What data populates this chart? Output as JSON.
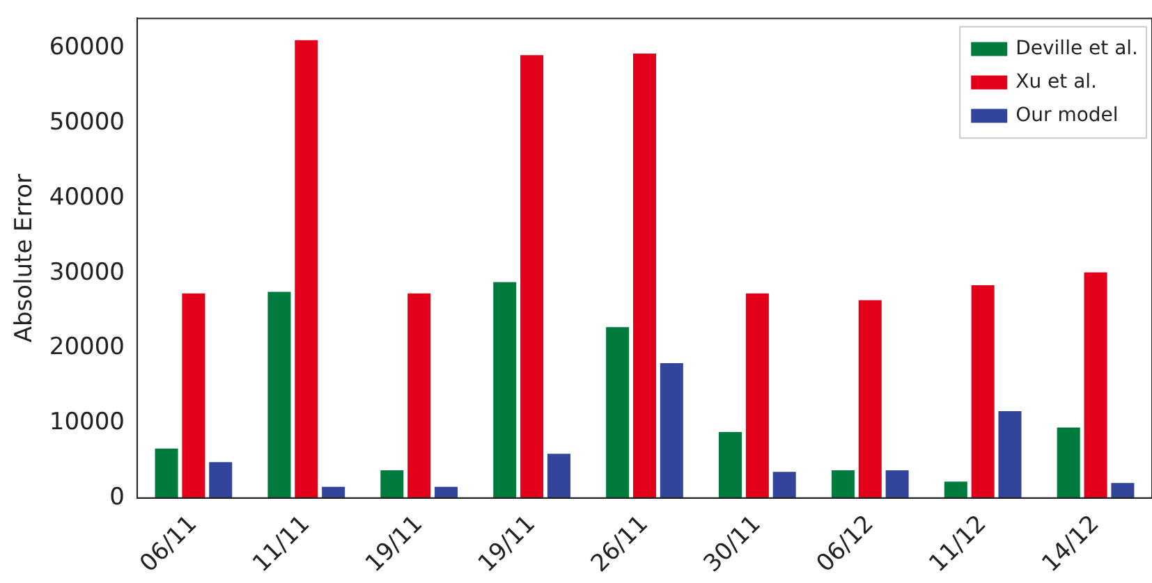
{
  "chart_data": {
    "type": "bar",
    "ylabel": "Absolute Error",
    "categories": [
      "06/11",
      "11/11",
      "19/11",
      "19/11",
      "26/11",
      "30/11",
      "06/12",
      "11/12",
      "14/12"
    ],
    "series": [
      {
        "name": "Deville et al.",
        "color": "#007a3d",
        "values": [
          6600,
          27500,
          3700,
          28800,
          22800,
          8800,
          3700,
          2200,
          9400
        ]
      },
      {
        "name": "Xu et al.",
        "color": "#e3001b",
        "values": [
          27300,
          61100,
          27300,
          59100,
          59300,
          27300,
          26400,
          28400,
          30100
        ]
      },
      {
        "name": "Our model",
        "color": "#33459a",
        "values": [
          4800,
          1500,
          1500,
          5900,
          18000,
          3500,
          3700,
          11600,
          2000
        ]
      }
    ],
    "ylim": [
      0,
      64000
    ],
    "yticks": [
      0,
      10000,
      20000,
      30000,
      40000,
      50000,
      60000
    ],
    "grid": false,
    "legend": "top right"
  }
}
